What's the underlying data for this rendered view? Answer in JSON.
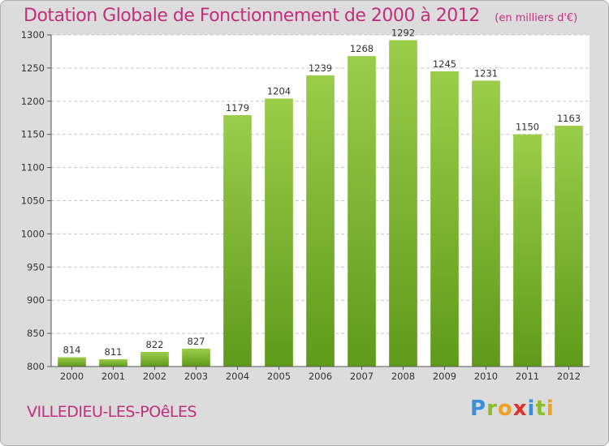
{
  "header": {
    "title": "Dotation Globale de Fonctionnement de 2000 à 2012",
    "unit": "(en milliers d'€)"
  },
  "footer": {
    "city": "VILLEDIEU-LES-POêLES",
    "logo_letters": [
      {
        "ch": "P",
        "color": "#3a8fd6"
      },
      {
        "ch": "r",
        "color": "#8bbf2a"
      },
      {
        "ch": "o",
        "color": "#f0a020"
      },
      {
        "ch": "x",
        "color": "#e0302a"
      },
      {
        "ch": "i",
        "color": "#3a8fd6"
      },
      {
        "ch": "t",
        "color": "#8bbf2a"
      },
      {
        "ch": "i",
        "color": "#f0a020"
      }
    ]
  },
  "chart_data": {
    "type": "bar",
    "categories": [
      "2000",
      "2001",
      "2002",
      "2003",
      "2004",
      "2005",
      "2006",
      "2007",
      "2008",
      "2009",
      "2010",
      "2011",
      "2012"
    ],
    "values": [
      814,
      811,
      822,
      827,
      1179,
      1204,
      1239,
      1268,
      1292,
      1245,
      1231,
      1150,
      1163
    ],
    "ylim": [
      800,
      1300
    ],
    "yticks": [
      800,
      850,
      900,
      950,
      1000,
      1050,
      1100,
      1150,
      1200,
      1250,
      1300
    ],
    "grid": true,
    "bar_color_top": "#9acd4a",
    "bar_color_bottom": "#5f9a1a",
    "title_color": "#c0307a"
  }
}
